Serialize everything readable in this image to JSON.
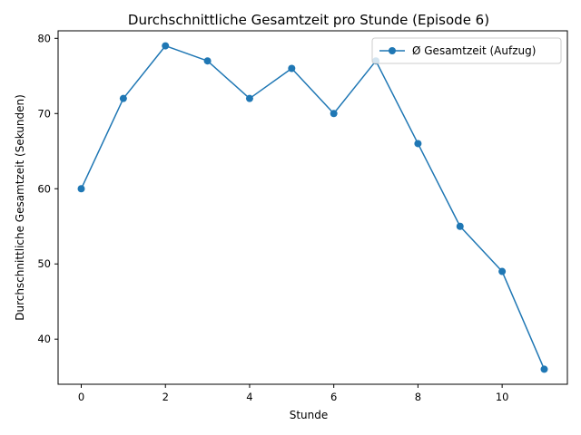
{
  "chart_data": {
    "type": "line",
    "title": "Durchschnittliche Gesamtzeit pro Stunde (Episode 6)",
    "xlabel": "Stunde",
    "ylabel": "Durchschnittliche Gesamtzeit (Sekunden)",
    "xlim": [
      -0.55,
      11.55
    ],
    "ylim": [
      34.0,
      81.0
    ],
    "xticks": [
      0,
      2,
      4,
      6,
      8,
      10
    ],
    "yticks": [
      40,
      50,
      60,
      70,
      80
    ],
    "grid": false,
    "legend_position": "upper right",
    "series": [
      {
        "name": "Ø Gesamtzeit (Aufzug)",
        "color": "#1f77b4",
        "marker": "circle",
        "x": [
          0,
          1,
          2,
          3,
          4,
          5,
          6,
          7,
          8,
          9,
          10,
          11
        ],
        "y": [
          60,
          72,
          79,
          77,
          72,
          76,
          70,
          77,
          66,
          55,
          49,
          36
        ]
      }
    ]
  }
}
